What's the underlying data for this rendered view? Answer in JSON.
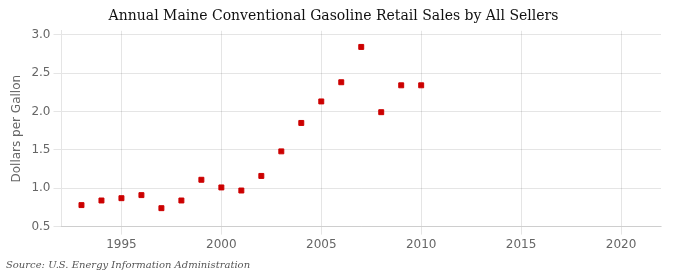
{
  "chart_data": {
    "type": "scatter",
    "title": "Annual Maine Conventional Gasoline Retail Sales by All Sellers",
    "ylabel": "Dollars per Gallon",
    "annotation": "Source: U.S. Energy Information Administration",
    "x": [
      1993,
      1994,
      1995,
      1996,
      1997,
      1998,
      1999,
      2000,
      2001,
      2002,
      2003,
      2004,
      2005,
      2006,
      2007,
      2008,
      2009,
      2010
    ],
    "values": [
      0.78,
      0.84,
      0.87,
      0.91,
      0.74,
      0.84,
      1.11,
      1.01,
      0.97,
      1.16,
      1.48,
      1.85,
      2.13,
      2.38,
      2.84,
      1.99,
      2.34,
      2.34
    ],
    "color": "#cc0000",
    "marker": "square",
    "xlim": [
      1992,
      2022
    ],
    "xticks": [
      1995,
      2000,
      2005,
      2010,
      2015,
      2020
    ],
    "ylim": [
      0.5,
      3.05
    ],
    "yticks": [
      0.5,
      {
        "value": 1.0,
        "label": "1.0"
      },
      1.5,
      {
        "value": 2.0,
        "label": "2.0"
      },
      2.5,
      {
        "value": 3.0,
        "label": "3.0"
      }
    ],
    "grid": true
  }
}
